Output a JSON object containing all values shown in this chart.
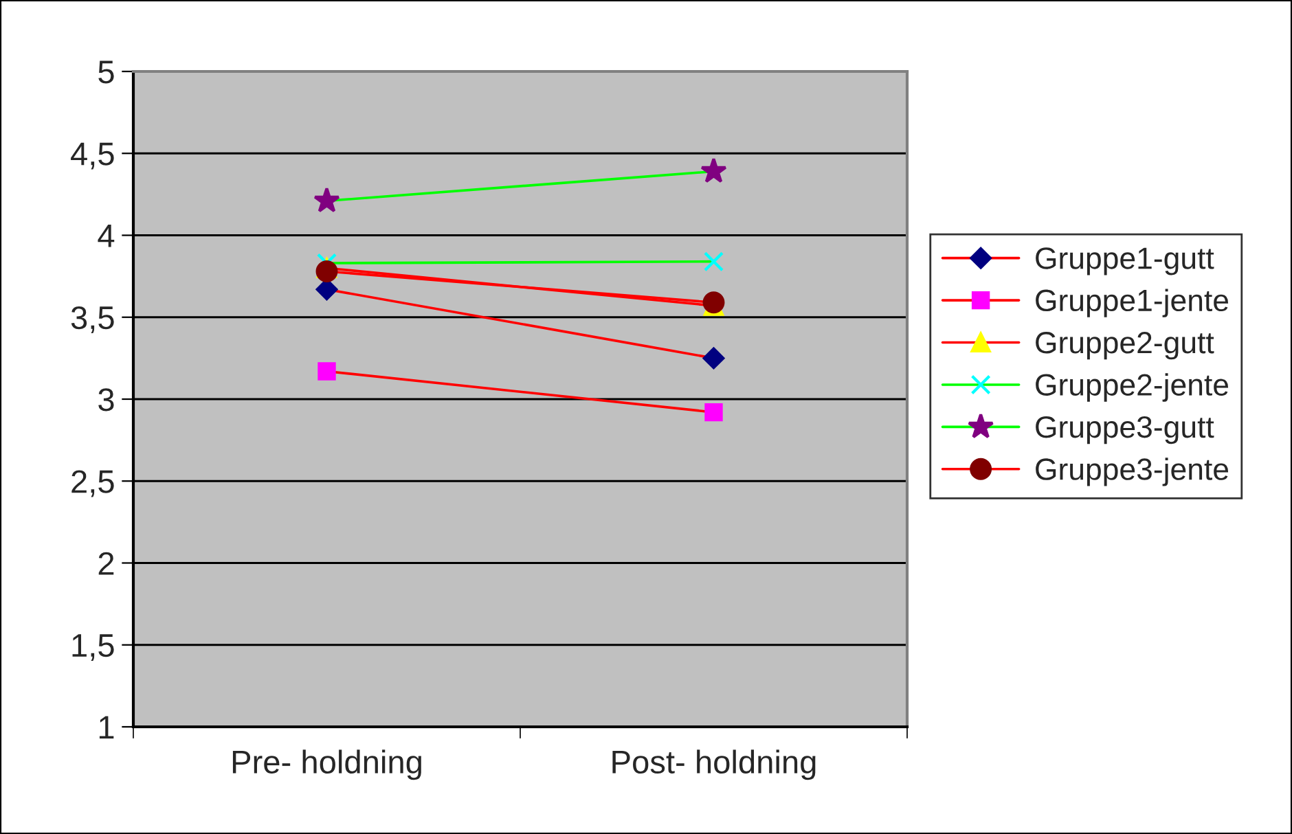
{
  "chart_data": {
    "type": "line",
    "categories": [
      "Pre- holdning",
      "Post- holdning"
    ],
    "series": [
      {
        "name": "Gruppe1-gutt",
        "color": "#ff0000",
        "colors": [
          "#000080",
          "#000080"
        ],
        "marker": "diamond",
        "values": [
          3.67,
          3.25
        ]
      },
      {
        "name": "Gruppe1-jente",
        "color": "#ff0000",
        "colors": [
          "#ff00ff",
          "#ff00ff"
        ],
        "marker": "square",
        "values": [
          3.17,
          2.92
        ]
      },
      {
        "name": "Gruppe2-gutt",
        "color": "#ff0000",
        "colors": [
          "#ffff00",
          "#ffff00"
        ],
        "marker": "triangle",
        "values": [
          3.8,
          3.57
        ]
      },
      {
        "name": "Gruppe2-jente",
        "color": "#00ff00",
        "colors": [
          "#00ffff",
          "#00ffff"
        ],
        "marker": "cross",
        "values": [
          3.83,
          3.84
        ]
      },
      {
        "name": "Gruppe3-gutt",
        "color": "#00ff00",
        "colors": [
          "#800080",
          "#800080"
        ],
        "marker": "star",
        "values": [
          4.21,
          4.39
        ]
      },
      {
        "name": "Gruppe3-jente",
        "color": "#ff0000",
        "colors": [
          "#800000",
          "#800000"
        ],
        "marker": "circle",
        "values": [
          3.78,
          3.59
        ]
      }
    ],
    "ylim": [
      1,
      5
    ],
    "yticks": [
      {
        "value": 1,
        "label": "1"
      },
      {
        "value": 1.5,
        "label": "1,5"
      },
      {
        "value": 2,
        "label": "2"
      },
      {
        "value": 2.5,
        "label": "2,5"
      },
      {
        "value": 3,
        "label": "3"
      },
      {
        "value": 3.5,
        "label": "3,5"
      },
      {
        "value": 4,
        "label": "4"
      },
      {
        "value": 4.5,
        "label": "4,5"
      },
      {
        "value": 5,
        "label": "5"
      }
    ],
    "grid": "y",
    "legend": "right"
  }
}
